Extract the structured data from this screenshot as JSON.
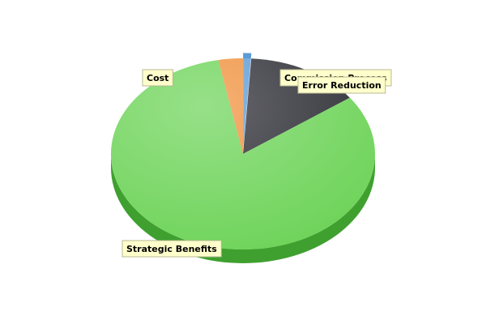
{
  "chart_data": {
    "type": "pie",
    "style": "3d",
    "categories": [
      "Commission Process",
      "Error Reduction",
      "Strategic Benefits",
      "Cost"
    ],
    "values": [
      1,
      14,
      82,
      3
    ],
    "colors": [
      "#5b9bd5",
      "#2e2e36",
      "#6fd45a",
      "#f0913d"
    ],
    "side_colors": [
      "#3e78b0",
      "#1a1a20",
      "#3fa02f",
      "#c86a1f"
    ],
    "legend": "none"
  }
}
